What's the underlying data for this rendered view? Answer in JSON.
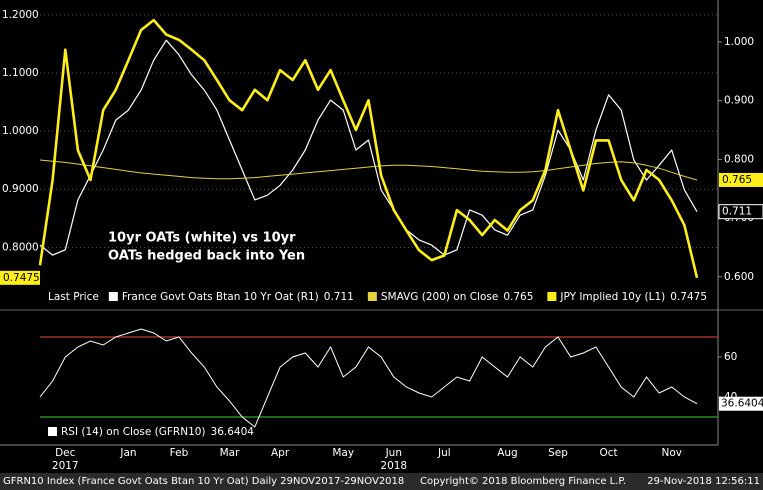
{
  "chart_data": [
    {
      "type": "line",
      "legend_title": "Last Price",
      "annotation": [
        "10yr OATs (white) vs 10yr",
        "OATs hedged back into Yen"
      ],
      "ylim": [
        0.73,
        1.217
      ],
      "yticks": [
        {
          "value": 0.8,
          "label": "0.8000"
        },
        {
          "value": 0.9,
          "label": "0.9000"
        },
        {
          "value": 1.0,
          "label": "1.0000"
        },
        {
          "value": 1.1,
          "label": "1.1000"
        },
        {
          "value": 1.2,
          "label": "1.2000"
        }
      ],
      "y2lim": [
        0.581,
        1.063
      ],
      "y2ticks": [
        {
          "value": 0.6,
          "label": "0.600"
        },
        {
          "value": 0.7,
          "label": "0.700"
        },
        {
          "value": 0.8,
          "label": "0.800"
        },
        {
          "value": 0.9,
          "label": "0.900"
        },
        {
          "value": 1.0,
          "label": "1.000"
        }
      ],
      "grid": true,
      "series": [
        {
          "name": "France Govt Oats Btan 10 Yr Oat (R1)",
          "color": "#ffffff",
          "axis": "y2",
          "values": [
            0.654,
            0.637,
            0.646,
            0.731,
            0.773,
            0.816,
            0.867,
            0.884,
            0.918,
            0.969,
            1.003,
            0.978,
            0.944,
            0.918,
            0.884,
            0.833,
            0.782,
            0.731,
            0.739,
            0.756,
            0.782,
            0.816,
            0.867,
            0.901,
            0.884,
            0.816,
            0.833,
            0.748,
            0.714,
            0.68,
            0.663,
            0.654,
            0.637,
            0.646,
            0.714,
            0.705,
            0.68,
            0.671,
            0.705,
            0.714,
            0.773,
            0.85,
            0.816,
            0.765,
            0.85,
            0.91,
            0.884,
            0.799,
            0.765,
            0.79,
            0.816,
            0.748,
            0.711
          ]
        },
        {
          "name": "SMAVG (200)  on Close",
          "color": "#e6d23c",
          "axis": "y2",
          "values": [
            0.799,
            0.797,
            0.795,
            0.792,
            0.789,
            0.786,
            0.783,
            0.78,
            0.777,
            0.775,
            0.773,
            0.771,
            0.769,
            0.768,
            0.767,
            0.767,
            0.768,
            0.769,
            0.771,
            0.773,
            0.775,
            0.777,
            0.779,
            0.781,
            0.783,
            0.785,
            0.787,
            0.789,
            0.79,
            0.79,
            0.789,
            0.788,
            0.786,
            0.784,
            0.782,
            0.78,
            0.779,
            0.778,
            0.778,
            0.779,
            0.781,
            0.784,
            0.787,
            0.79,
            0.793,
            0.795,
            0.796,
            0.794,
            0.79,
            0.785,
            0.778,
            0.771,
            0.765
          ]
        },
        {
          "name": "JPY Implied 10y (L1)",
          "color": "#ffee1a",
          "axis": "y",
          "values": [
            0.769,
            0.916,
            1.14,
            0.967,
            0.916,
            1.036,
            1.071,
            1.122,
            1.174,
            1.191,
            1.166,
            1.157,
            1.14,
            1.122,
            1.088,
            1.053,
            1.036,
            1.071,
            1.053,
            1.105,
            1.088,
            1.122,
            1.071,
            1.105,
            1.053,
            1.002,
            1.053,
            0.924,
            0.864,
            0.829,
            0.795,
            0.778,
            0.786,
            0.864,
            0.847,
            0.821,
            0.847,
            0.829,
            0.864,
            0.881,
            0.933,
            1.036,
            0.967,
            0.898,
            0.984,
            0.984,
            0.916,
            0.881,
            0.933,
            0.916,
            0.881,
            0.838,
            0.7475
          ]
        }
      ]
    },
    {
      "type": "line",
      "ylim": [
        18.5,
        81
      ],
      "yticks": [
        40,
        60
      ],
      "reference_lines": [
        {
          "value": 70,
          "color": "#c0392b"
        },
        {
          "value": 30,
          "color": "#2ea82e"
        }
      ],
      "categories": [
        null,
        null,
        "Dec",
        null,
        null,
        null,
        null,
        "Jan",
        null,
        null,
        null,
        "Feb",
        null,
        null,
        null,
        "Mar",
        null,
        null,
        null,
        "Apr",
        null,
        null,
        null,
        null,
        "May",
        null,
        null,
        null,
        "Jun",
        null,
        null,
        null,
        "Jul",
        null,
        null,
        null,
        null,
        "Aug",
        null,
        null,
        null,
        "Sep",
        null,
        null,
        null,
        "Oct",
        null,
        null,
        null,
        null,
        "Nov",
        null,
        null
      ],
      "year_categories": [
        null,
        null,
        "2017",
        null,
        null,
        null,
        null,
        null,
        null,
        null,
        null,
        null,
        null,
        null,
        null,
        null,
        null,
        null,
        null,
        null,
        null,
        null,
        null,
        null,
        null,
        null,
        null,
        null,
        "2018",
        null,
        null,
        null,
        null,
        null,
        null,
        null,
        null,
        null,
        null,
        null,
        null,
        null,
        null,
        null,
        null,
        null,
        null,
        null,
        null,
        null,
        null,
        null,
        null
      ],
      "series": [
        {
          "name": "RSI (14)  on Close (GFRN10)",
          "color": "#ffffff",
          "values": [
            40,
            48,
            60,
            65,
            68,
            66,
            70,
            72,
            74,
            72,
            68,
            70,
            62,
            55,
            45,
            38,
            30,
            25,
            40,
            55,
            60,
            62,
            55,
            65,
            50,
            55,
            65,
            60,
            50,
            45,
            42,
            40,
            45,
            50,
            48,
            60,
            55,
            50,
            60,
            55,
            65,
            70,
            60,
            62,
            65,
            55,
            45,
            40,
            50,
            42,
            45,
            40,
            36.6404
          ]
        }
      ]
    }
  ],
  "footer": {
    "left": "GFRN10 Index (France Govt Oats Btan 10 Yr Oat)  Daily 29NOV2017-29NOV2018",
    "center": "Copyright© 2018 Bloomberg Finance L.P.",
    "right": "29-Nov-2018 12:56:11"
  }
}
